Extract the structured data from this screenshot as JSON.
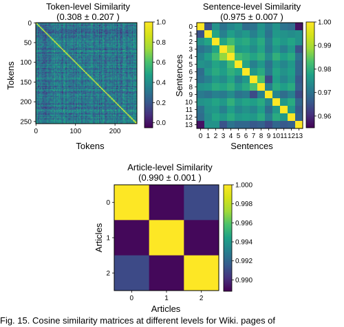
{
  "figure": {
    "caption": "Fig. 15. Cosine similarity matrices at different levels for Wiki. pages of"
  },
  "chart_data": [
    {
      "type": "heatmap",
      "title": "Token-level Similarity",
      "subtitle": "(0.308 ± 0.207 )",
      "xlabel": "Tokens",
      "ylabel": "Tokens",
      "size": 256,
      "x_ticks": [
        0,
        100,
        200
      ],
      "y_ticks": [
        0,
        50,
        100,
        150,
        200,
        250
      ],
      "colorbar": {
        "min": -0.05,
        "max": 1.0,
        "ticks": [
          0.0,
          0.2,
          0.4,
          0.6,
          0.8,
          1.0
        ],
        "tick_labels": [
          "0.0",
          "0.2",
          "0.4",
          "0.6",
          "0.8",
          "1.0"
        ]
      },
      "colormap": "viridis",
      "diagonal_value": 1.0,
      "mean": 0.308,
      "std": 0.207
    },
    {
      "type": "heatmap",
      "title": "Sentence-level Similarity",
      "subtitle": "(0.975 ± 0.007 )",
      "xlabel": "Sentences",
      "ylabel": "Sentences",
      "tick_labels": [
        "0",
        "1",
        "2",
        "3",
        "4",
        "5",
        "6",
        "7",
        "8",
        "9",
        "10",
        "11",
        "12",
        "13"
      ],
      "colorbar": {
        "min": 0.955,
        "max": 1.0,
        "ticks": [
          0.96,
          0.97,
          0.98,
          0.99,
          1.0
        ],
        "tick_labels": [
          "0.96",
          "0.97",
          "0.98",
          "0.99",
          "1.00"
        ]
      },
      "colormap": "viridis",
      "values": [
        [
          1.0,
          0.965,
          0.975,
          0.97,
          0.973,
          0.975,
          0.969,
          0.97,
          0.975,
          0.971,
          0.975,
          0.97,
          0.969,
          0.957
        ],
        [
          0.965,
          1.0,
          0.978,
          0.972,
          0.977,
          0.974,
          0.976,
          0.972,
          0.976,
          0.97,
          0.976,
          0.975,
          0.974,
          0.975
        ],
        [
          0.975,
          0.978,
          1.0,
          0.978,
          0.982,
          0.978,
          0.979,
          0.976,
          0.979,
          0.972,
          0.978,
          0.976,
          0.978,
          0.975
        ],
        [
          0.97,
          0.972,
          0.978,
          1.0,
          0.988,
          0.976,
          0.977,
          0.974,
          0.978,
          0.971,
          0.976,
          0.972,
          0.976,
          0.965
        ],
        [
          0.973,
          0.977,
          0.982,
          0.988,
          1.0,
          0.982,
          0.98,
          0.978,
          0.98,
          0.974,
          0.98,
          0.977,
          0.979,
          0.97
        ],
        [
          0.975,
          0.974,
          0.978,
          0.976,
          0.982,
          1.0,
          0.978,
          0.972,
          0.976,
          0.97,
          0.976,
          0.973,
          0.976,
          0.968
        ],
        [
          0.969,
          0.976,
          0.979,
          0.977,
          0.98,
          0.978,
          1.0,
          0.976,
          0.979,
          0.971,
          0.978,
          0.975,
          0.977,
          0.968
        ],
        [
          0.97,
          0.972,
          0.976,
          0.974,
          0.978,
          0.972,
          0.976,
          1.0,
          0.983,
          0.964,
          0.977,
          0.973,
          0.976,
          0.966
        ],
        [
          0.975,
          0.976,
          0.979,
          0.978,
          0.98,
          0.976,
          0.979,
          0.983,
          1.0,
          0.972,
          0.979,
          0.977,
          0.979,
          0.967
        ],
        [
          0.971,
          0.97,
          0.972,
          0.971,
          0.974,
          0.97,
          0.971,
          0.964,
          0.972,
          1.0,
          0.973,
          0.969,
          0.972,
          0.964
        ],
        [
          0.975,
          0.976,
          0.978,
          0.976,
          0.98,
          0.976,
          0.978,
          0.977,
          0.979,
          0.973,
          1.0,
          0.976,
          0.979,
          0.968
        ],
        [
          0.97,
          0.975,
          0.976,
          0.972,
          0.977,
          0.973,
          0.975,
          0.973,
          0.977,
          0.969,
          0.976,
          1.0,
          0.976,
          0.966
        ],
        [
          0.969,
          0.974,
          0.978,
          0.976,
          0.979,
          0.976,
          0.977,
          0.976,
          0.979,
          0.972,
          0.979,
          0.976,
          1.0,
          0.967
        ],
        [
          0.957,
          0.975,
          0.975,
          0.965,
          0.97,
          0.968,
          0.968,
          0.966,
          0.967,
          0.964,
          0.968,
          0.966,
          0.967,
          1.0
        ]
      ]
    },
    {
      "type": "heatmap",
      "title": "Article-level Similarity",
      "subtitle": "(0.990 ± 0.001 )",
      "xlabel": "Articles",
      "ylabel": "Articles",
      "tick_labels": [
        "0",
        "1",
        "2"
      ],
      "colorbar": {
        "min": 0.9888,
        "max": 1.0,
        "ticks": [
          0.99,
          0.992,
          0.994,
          0.996,
          0.998,
          1.0
        ],
        "tick_labels": [
          "0.990",
          "0.992",
          "0.994",
          "0.996",
          "0.998",
          "1.000"
        ]
      },
      "colormap": "viridis",
      "values": [
        [
          1.0,
          0.989,
          0.991
        ],
        [
          0.989,
          1.0,
          0.989
        ],
        [
          0.991,
          0.989,
          1.0
        ]
      ]
    }
  ]
}
